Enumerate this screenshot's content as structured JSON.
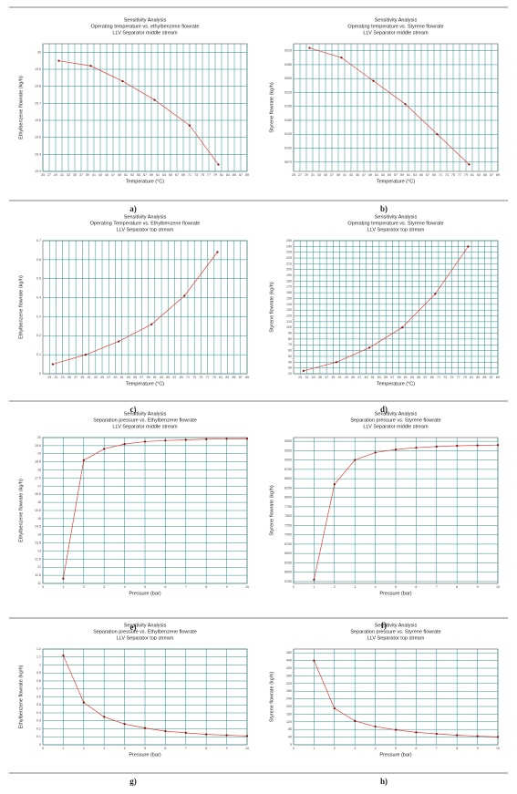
{
  "chart_data": [
    {
      "type": "line",
      "panel": "a)",
      "title": [
        "Sensitivity Analysis",
        "Operating temperature vs. ethylbenzene flowrate",
        "LLV Separator middle stream"
      ],
      "x_label": "Temperature (°C)",
      "y_label": "Ethylbenzene flowrate (kg/h)",
      "color": "#e0403a",
      "grid": true,
      "x": [
        30,
        40,
        50,
        60,
        71,
        80
      ],
      "values": [
        19.95,
        19.92,
        19.83,
        19.72,
        19.57,
        19.34
      ],
      "xlim": [
        25,
        89
      ],
      "xticks": [
        25,
        27,
        29,
        31,
        33,
        35,
        37,
        39,
        41,
        43,
        45,
        47,
        49,
        51,
        53,
        55,
        57,
        59,
        61,
        63,
        65,
        67,
        69,
        71,
        73,
        75,
        77,
        79,
        81,
        83,
        85,
        87,
        89
      ],
      "ylim": [
        19.3,
        20.05
      ],
      "yticks": [
        19.3,
        19.4,
        19.5,
        19.6,
        19.7,
        19.8,
        19.9,
        20
      ]
    },
    {
      "type": "line",
      "panel": "b)",
      "title": [
        "Sensitivity Analysis",
        "Operating temperature vs. Styrene flowrate",
        "LLV Separator middle stream"
      ],
      "x_label": "Temperature (°C)",
      "y_label": "Styrene flowrate (kg/h)",
      "color": "#e0403a",
      "grid": true,
      "x": [
        30,
        40,
        50,
        60,
        70,
        80
      ],
      "values": [
        9316,
        9295,
        9245,
        9195,
        9130,
        9065
      ],
      "xlim": [
        25,
        89
      ],
      "xticks": [
        25,
        27,
        29,
        31,
        33,
        35,
        37,
        39,
        41,
        43,
        45,
        47,
        49,
        51,
        53,
        55,
        57,
        59,
        61,
        63,
        65,
        67,
        69,
        71,
        73,
        75,
        77,
        79,
        81,
        83,
        85,
        87,
        89
      ],
      "ylim": [
        9050,
        9325
      ],
      "yticks": [
        9070,
        9100,
        9130,
        9160,
        9190,
        9220,
        9250,
        9280,
        9310
      ]
    },
    {
      "type": "line",
      "panel": "c)",
      "title": [
        "Sensitivity Analysis",
        "Operating Temperature vs. Ethylbenzene flowrate",
        "LLV Separator top stream"
      ],
      "x_label": "Temperature (°C)",
      "y_label": "Ethylbenzene flowrate (kg/h)",
      "color": "#e0403a",
      "grid": true,
      "x": [
        30,
        40,
        50,
        60,
        70,
        80
      ],
      "values": [
        0.05,
        0.1,
        0.17,
        0.26,
        0.41,
        0.64
      ],
      "xlim": [
        27,
        89
      ],
      "xticks": [
        29,
        31,
        33,
        35,
        37,
        39,
        41,
        43,
        45,
        47,
        49,
        51,
        53,
        55,
        57,
        59,
        61,
        63,
        65,
        67,
        69,
        71,
        73,
        75,
        77,
        79,
        81,
        83,
        85,
        87,
        89
      ],
      "ylim": [
        0,
        0.7
      ],
      "yticks": [
        0,
        0.1,
        0.2,
        0.3,
        0.4,
        0.5,
        0.6,
        0.7
      ]
    },
    {
      "type": "line",
      "panel": "d)",
      "title": [
        "Sensitivity Analysis",
        "Operating temperature vs. Styrene flowrate",
        "LLV Separator top stream"
      ],
      "x_label": "Temperature (°C)",
      "y_label": "Styrene flowrate (kg/h)",
      "color": "#e0403a",
      "grid": true,
      "x": [
        30,
        40,
        50,
        60,
        70,
        80
      ],
      "values": [
        25,
        40,
        65,
        100,
        158,
        240
      ],
      "xlim": [
        27,
        89
      ],
      "xticks": [
        29,
        31,
        33,
        35,
        37,
        39,
        41,
        43,
        45,
        47,
        49,
        51,
        53,
        55,
        57,
        59,
        61,
        63,
        65,
        67,
        69,
        71,
        73,
        75,
        77,
        79,
        81,
        83,
        85,
        87,
        89
      ],
      "ylim": [
        20,
        250
      ],
      "yticks": [
        20,
        30,
        40,
        50,
        60,
        70,
        80,
        90,
        100,
        110,
        120,
        130,
        140,
        150,
        160,
        170,
        180,
        190,
        200,
        210,
        220,
        230,
        240,
        250
      ]
    },
    {
      "type": "line",
      "panel": "e)",
      "title": [
        "Sensitivity Analysis",
        "Separation pressure vs. Ethylbenzene flowrate",
        "LLV Separator middle stream"
      ],
      "x_label": "Pressure (bar)",
      "y_label": "Ethylbenzene flowrate (kg/h)",
      "color": "#e0403a",
      "grid": true,
      "x": [
        1,
        2,
        3,
        4,
        5,
        6,
        7,
        8,
        9,
        10
      ],
      "values": [
        11.3,
        18.6,
        19.3,
        19.6,
        19.75,
        19.82,
        19.86,
        19.9,
        19.92,
        19.93
      ],
      "xlim": [
        0,
        10
      ],
      "xticks": [
        0,
        1,
        2,
        3,
        4,
        5,
        6,
        7,
        8,
        9,
        10
      ],
      "ylim": [
        11,
        20
      ],
      "yticks": [
        11,
        11.5,
        12,
        12.5,
        13,
        13.5,
        14,
        14.5,
        15,
        15.5,
        16,
        16.5,
        17,
        17.5,
        18,
        18.5,
        19,
        19.5,
        20
      ]
    },
    {
      "type": "line",
      "panel": "f)",
      "title": [
        "Sensitivity Analysis",
        "Separation pressure vs. Styrene flowrate",
        "LLV Separator middle stream"
      ],
      "x_label": "Pressure (bar)",
      "y_label": "Styrene flowrate (kg/h)",
      "color": "#e0403a",
      "grid": true,
      "x": [
        1,
        2,
        3,
        4,
        5,
        6,
        7,
        8,
        9,
        10
      ],
      "values": [
        5800,
        8350,
        9000,
        9200,
        9280,
        9330,
        9360,
        9380,
        9390,
        9400
      ],
      "xlim": [
        0,
        10
      ],
      "xticks": [
        0,
        1,
        2,
        3,
        4,
        5,
        6,
        7,
        8,
        9,
        10
      ],
      "ylim": [
        5700,
        9600
      ],
      "yticks": [
        5750,
        6000,
        6250,
        6500,
        6750,
        7000,
        7250,
        7500,
        7750,
        8000,
        8250,
        8500,
        8750,
        9000,
        9250,
        9500
      ]
    },
    {
      "type": "line",
      "panel": "g)",
      "title": [
        "Sensitivity Analysis",
        "Separation pressure vs. Ethylbenzene flowrate",
        "LLV Separator top stream"
      ],
      "x_label": "Pressure (bar)",
      "y_label": "Ethylbenzene flowrate (kg/h)",
      "color": "#e0403a",
      "grid": true,
      "x": [
        1,
        2,
        3,
        4,
        5,
        6,
        7,
        8,
        9,
        10
      ],
      "values": [
        1.12,
        0.53,
        0.35,
        0.26,
        0.21,
        0.17,
        0.15,
        0.13,
        0.12,
        0.11
      ],
      "xlim": [
        0,
        10
      ],
      "xticks": [
        0,
        1,
        2,
        3,
        4,
        5,
        6,
        7,
        8,
        9,
        10
      ],
      "ylim": [
        0,
        1.2
      ],
      "yticks": [
        0,
        0.1,
        0.2,
        0.3,
        0.4,
        0.5,
        0.6,
        0.7,
        0.8,
        0.9,
        1,
        1.1,
        1.2
      ]
    },
    {
      "type": "line",
      "panel": "h)",
      "title": [
        "Sensitivity Analysis",
        "Separation pressure vs. Styrene flowrate",
        "LLV Separator top stream"
      ],
      "x_label": "Pressure (bar)",
      "y_label": "Styrene flowrate (kg/h)",
      "color": "#e0403a",
      "grid": true,
      "x": [
        1,
        2,
        3,
        4,
        5,
        6,
        7,
        8,
        9,
        10
      ],
      "values": [
        440,
        190,
        125,
        95,
        78,
        65,
        57,
        50,
        45,
        41
      ],
      "xlim": [
        0,
        10
      ],
      "xticks": [
        0,
        1,
        2,
        3,
        4,
        5,
        6,
        7,
        8,
        9,
        10
      ],
      "ylim": [
        0,
        500
      ],
      "yticks": [
        0,
        40,
        80,
        120,
        160,
        200,
        240,
        280,
        320,
        360,
        400,
        440,
        480
      ]
    }
  ]
}
